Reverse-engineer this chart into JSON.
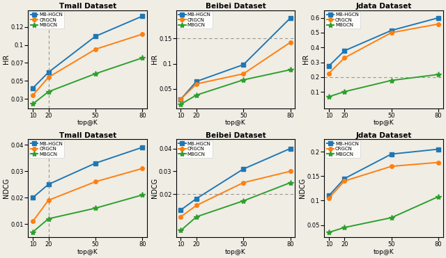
{
  "x": [
    10,
    20,
    50,
    80
  ],
  "plots": [
    {
      "title": "Tmall Dataset",
      "ylabel": "HR",
      "series": [
        {
          "label": "MB-HGCN",
          "color": "#1f77b4",
          "marker": "s",
          "values": [
            0.04,
            0.062,
            0.112,
            0.14
          ]
        },
        {
          "label": "CRGCN",
          "color": "#ff7f0e",
          "marker": "o",
          "values": [
            0.03,
            0.055,
            0.094,
            0.115
          ]
        },
        {
          "label": "MBGCN",
          "color": "#2ca02c",
          "marker": "*",
          "values": [
            0.018,
            0.035,
            0.06,
            0.082
          ]
        }
      ],
      "vline": 20,
      "hline": null,
      "ylim": [
        0.012,
        0.148
      ],
      "yticks": [
        0.025,
        0.05,
        0.075,
        0.1,
        0.125
      ],
      "legend": true
    },
    {
      "title": "Beibei Dataset",
      "ylabel": "HR",
      "series": [
        {
          "label": "MB-HGCN",
          "color": "#1f77b4",
          "marker": "s",
          "values": [
            0.03,
            0.065,
            0.098,
            0.19
          ]
        },
        {
          "label": "CRGCN",
          "color": "#ff7f0e",
          "marker": "o",
          "values": [
            0.03,
            0.06,
            0.08,
            0.142
          ]
        },
        {
          "label": "MBGCN",
          "color": "#2ca02c",
          "marker": "*",
          "values": [
            0.02,
            0.038,
            0.068,
            0.088
          ]
        }
      ],
      "vline": null,
      "hline": 0.15,
      "ylim": [
        0.012,
        0.205
      ],
      "yticks": [
        0.05,
        0.1,
        0.15
      ],
      "legend": true
    },
    {
      "title": "Jdata Dataset",
      "ylabel": "HR",
      "series": [
        {
          "label": "MB-HGCN",
          "color": "#1f77b4",
          "marker": "s",
          "values": [
            0.275,
            0.378,
            0.515,
            0.6
          ]
        },
        {
          "label": "CRGCN",
          "color": "#ff7f0e",
          "marker": "o",
          "values": [
            0.225,
            0.33,
            0.5,
            0.558
          ]
        },
        {
          "label": "MBGCN",
          "color": "#2ca02c",
          "marker": "*",
          "values": [
            0.068,
            0.102,
            0.178,
            0.218
          ]
        }
      ],
      "vline": null,
      "hline": 0.2,
      "ylim": [
        -0.01,
        0.65
      ],
      "yticks": [
        0.1,
        0.2,
        0.3,
        0.4,
        0.5,
        0.6
      ],
      "legend": true
    },
    {
      "title": "Tmall Dataset",
      "ylabel": "NDCG",
      "series": [
        {
          "label": "MB-HGCN",
          "color": "#1f77b4",
          "marker": "s",
          "values": [
            0.02,
            0.025,
            0.033,
            0.039
          ]
        },
        {
          "label": "CRGCN",
          "color": "#ff7f0e",
          "marker": "o",
          "values": [
            0.011,
            0.019,
            0.026,
            0.031
          ]
        },
        {
          "label": "MBGCN",
          "color": "#2ca02c",
          "marker": "*",
          "values": [
            0.007,
            0.012,
            0.016,
            0.021
          ]
        }
      ],
      "vline": 20,
      "hline": null,
      "ylim": [
        0.005,
        0.042
      ],
      "yticks": [
        0.01,
        0.02,
        0.03,
        0.04
      ],
      "legend": true
    },
    {
      "title": "Beibei Dataset",
      "ylabel": "NDCG",
      "series": [
        {
          "label": "MB-HGCN",
          "color": "#1f77b4",
          "marker": "s",
          "values": [
            0.013,
            0.018,
            0.031,
            0.04
          ]
        },
        {
          "label": "CRGCN",
          "color": "#ff7f0e",
          "marker": "o",
          "values": [
            0.01,
            0.015,
            0.025,
            0.03
          ]
        },
        {
          "label": "MBGCN",
          "color": "#2ca02c",
          "marker": "*",
          "values": [
            0.004,
            0.01,
            0.017,
            0.025
          ]
        }
      ],
      "vline": null,
      "hline": 0.02,
      "ylim": [
        0.001,
        0.044
      ],
      "yticks": [
        0.02,
        0.03,
        0.04
      ],
      "legend": true
    },
    {
      "title": "Jdata Dataset",
      "ylabel": "NDCG",
      "series": [
        {
          "label": "MB-HGCN",
          "color": "#1f77b4",
          "marker": "s",
          "values": [
            0.11,
            0.145,
            0.195,
            0.205
          ]
        },
        {
          "label": "CRGCN",
          "color": "#ff7f0e",
          "marker": "o",
          "values": [
            0.105,
            0.14,
            0.17,
            0.178
          ]
        },
        {
          "label": "MBGCN",
          "color": "#2ca02c",
          "marker": "*",
          "values": [
            0.035,
            0.045,
            0.065,
            0.108
          ]
        }
      ],
      "vline": null,
      "hline": null,
      "ylim": [
        0.025,
        0.225
      ],
      "yticks": [
        0.05,
        0.1,
        0.15,
        0.2
      ],
      "legend": true
    }
  ],
  "xlabel": "top@K",
  "bg_color": "#f0ede5"
}
